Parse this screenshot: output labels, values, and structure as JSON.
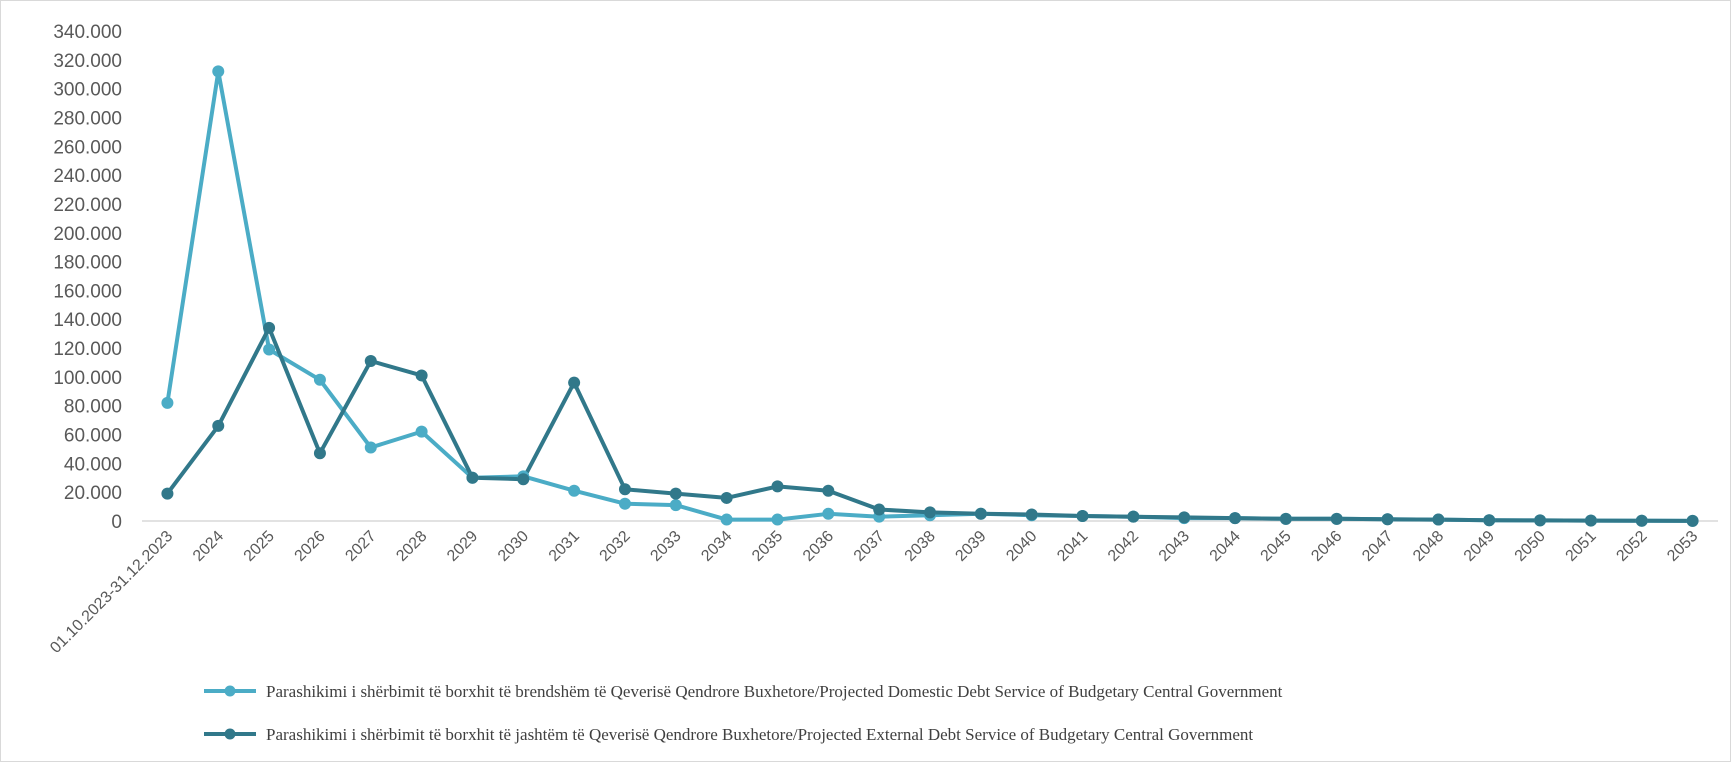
{
  "chart_data": {
    "type": "line",
    "title": "",
    "xlabel": "",
    "ylabel": "",
    "ylim": [
      0,
      340
    ],
    "y_ticks": [
      "0",
      "20.000",
      "40.000",
      "60.000",
      "80.000",
      "100.000",
      "120.000",
      "140.000",
      "160.000",
      "180.000",
      "200.000",
      "220.000",
      "240.000",
      "260.000",
      "280.000",
      "300.000",
      "320.000",
      "340.000"
    ],
    "categories": [
      "01.10.2023-31.12.2023",
      "2024",
      "2025",
      "2026",
      "2027",
      "2028",
      "2029",
      "2030",
      "2031",
      "2032",
      "2033",
      "2034",
      "2035",
      "2036",
      "2037",
      "2038",
      "2039",
      "2040",
      "2041",
      "2042",
      "2043",
      "2044",
      "2045",
      "2046",
      "2047",
      "2048",
      "2049",
      "2050",
      "2051",
      "2052",
      "2053"
    ],
    "series": [
      {
        "name": "Parashikimi  i shërbimit të borxhit të brendshëm të Qeverisë Qendrore Buxhetore/Projected Domestic Debt Service of Budgetary Central Government",
        "color": "#4bacc6",
        "values": [
          82,
          312,
          119,
          98,
          51,
          62,
          30,
          31,
          21,
          12,
          11,
          1,
          1,
          5,
          3,
          4,
          5,
          4,
          3.5,
          3,
          2,
          2,
          1.5,
          1.5,
          1.2,
          1,
          0.5,
          0.4,
          0.3,
          0.2,
          0.1
        ]
      },
      {
        "name": "Parashikimi  i shërbimit të borxhit të jashtëm të Qeverisë Qendrore Buxhetore/Projected External Debt Service of Budgetary Central Government",
        "color": "#31788a",
        "values": [
          19,
          66,
          134,
          47,
          111,
          101,
          30,
          29,
          96,
          22,
          19,
          16,
          24,
          21,
          8,
          6,
          5,
          4.5,
          3.5,
          3,
          2.5,
          2,
          1.5,
          1.5,
          1.2,
          1,
          0.5,
          0.4,
          0.3,
          0.2,
          0.1
        ]
      }
    ],
    "grid": false,
    "legend_position": "bottom"
  }
}
